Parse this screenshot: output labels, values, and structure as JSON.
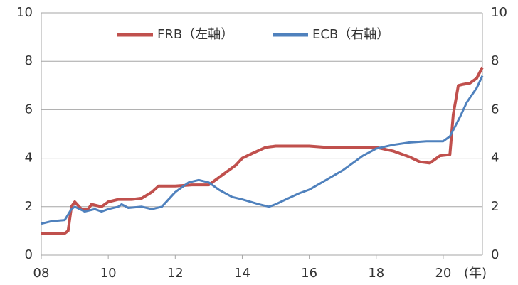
{
  "chart_data": {
    "type": "line",
    "xlabel": "(年)",
    "legend": "top",
    "grid": true,
    "xlim": [
      2008,
      2021.17
    ],
    "xticks": [
      {
        "value": 2008,
        "label": "08"
      },
      {
        "value": 2010,
        "label": "10"
      },
      {
        "value": 2012,
        "label": "12"
      },
      {
        "value": 2014,
        "label": "14"
      },
      {
        "value": 2016,
        "label": "16"
      },
      {
        "value": 2018,
        "label": "18"
      },
      {
        "value": 2020,
        "label": "20"
      }
    ],
    "ylim": [
      0,
      10
    ],
    "yticks": [
      0,
      2,
      4,
      6,
      8,
      10
    ],
    "y2lim": [
      0,
      10
    ],
    "y2ticks": [
      0,
      2,
      4,
      6,
      8,
      10
    ],
    "series": [
      {
        "name": "FRB（左軸）",
        "color": "#c0504d",
        "axis": "y",
        "x": [
          2008.0,
          2008.7,
          2008.8,
          2008.9,
          2009.0,
          2009.2,
          2009.4,
          2009.5,
          2009.8,
          2010.0,
          2010.3,
          2010.7,
          2011.0,
          2011.3,
          2011.5,
          2011.8,
          2012.0,
          2012.5,
          2013.0,
          2013.3,
          2013.8,
          2014.0,
          2014.3,
          2014.7,
          2015.0,
          2016.0,
          2016.5,
          2017.5,
          2018.0,
          2018.5,
          2019.0,
          2019.3,
          2019.6,
          2019.9,
          2020.2,
          2020.3,
          2020.45,
          2020.6,
          2020.8,
          2021.0,
          2021.17
        ],
        "values": [
          0.9,
          0.9,
          1.0,
          2.0,
          2.2,
          1.9,
          1.9,
          2.1,
          2.0,
          2.2,
          2.3,
          2.3,
          2.35,
          2.6,
          2.85,
          2.85,
          2.85,
          2.9,
          2.9,
          3.2,
          3.7,
          4.0,
          4.2,
          4.45,
          4.5,
          4.5,
          4.45,
          4.45,
          4.45,
          4.3,
          4.05,
          3.85,
          3.8,
          4.1,
          4.15,
          5.8,
          7.0,
          7.05,
          7.1,
          7.3,
          7.75
        ]
      },
      {
        "name": "ECB（右軸）",
        "color": "#4f81bd",
        "axis": "y2",
        "x": [
          2008.0,
          2008.3,
          2008.7,
          2008.9,
          2009.0,
          2009.3,
          2009.6,
          2009.8,
          2010.0,
          2010.3,
          2010.4,
          2010.6,
          2011.0,
          2011.3,
          2011.6,
          2012.0,
          2012.4,
          2012.7,
          2013.0,
          2013.3,
          2013.7,
          2014.0,
          2014.5,
          2014.8,
          2015.0,
          2015.3,
          2015.7,
          2016.0,
          2016.5,
          2017.0,
          2017.3,
          2017.6,
          2018.0,
          2018.5,
          2019.0,
          2019.5,
          2020.0,
          2020.2,
          2020.5,
          2020.7,
          2021.0,
          2021.17
        ],
        "values": [
          1.3,
          1.4,
          1.45,
          1.9,
          2.0,
          1.8,
          1.9,
          1.8,
          1.9,
          2.0,
          2.1,
          1.95,
          2.0,
          1.9,
          2.0,
          2.6,
          3.0,
          3.1,
          3.0,
          2.7,
          2.4,
          2.3,
          2.1,
          2.0,
          2.1,
          2.3,
          2.55,
          2.7,
          3.1,
          3.5,
          3.8,
          4.1,
          4.4,
          4.55,
          4.65,
          4.7,
          4.7,
          4.9,
          5.7,
          6.3,
          6.9,
          7.4
        ]
      }
    ]
  }
}
